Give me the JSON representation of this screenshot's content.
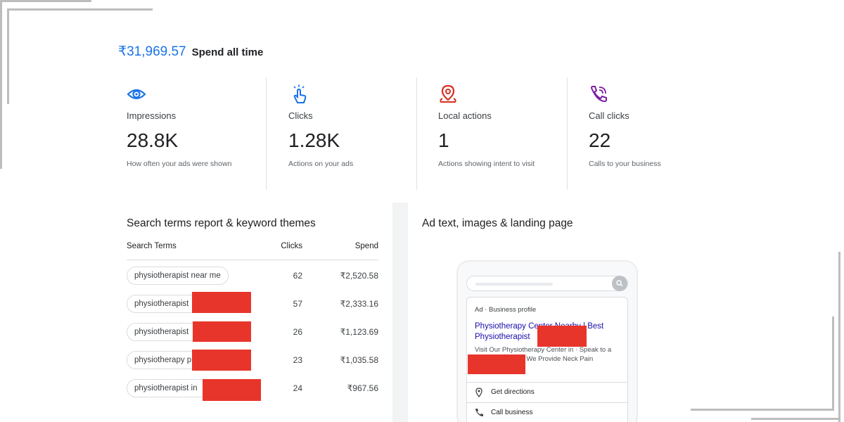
{
  "summary": {
    "spend_amount": "₹31,969.57",
    "spend_label": "Spend all time"
  },
  "metrics": [
    {
      "icon": "eye-icon",
      "label": "Impressions",
      "value": "28.8K",
      "description": "How often your ads were shown"
    },
    {
      "icon": "tap-icon",
      "label": "Clicks",
      "value": "1.28K",
      "description": "Actions on your ads"
    },
    {
      "icon": "location-pin-icon",
      "label": "Local actions",
      "value": "1",
      "description": "Actions showing intent to visit"
    },
    {
      "icon": "phone-call-icon",
      "label": "Call clicks",
      "value": "22",
      "description": "Calls to your business"
    }
  ],
  "search_terms": {
    "title": "Search terms report & keyword themes",
    "columns": [
      "Search Terms",
      "Clicks",
      "Spend"
    ],
    "rows": [
      {
        "term": "physiotherapist near me",
        "clicks": "62",
        "spend": "₹2,520.58"
      },
      {
        "term": "physiotherapist",
        "clicks": "57",
        "spend": "₹2,333.16"
      },
      {
        "term": "physiotherapist",
        "clicks": "26",
        "spend": "₹1,123.69"
      },
      {
        "term": "physiotherapy p",
        "clicks": "23",
        "spend": "₹1,035.58"
      },
      {
        "term": "physiotherapist in",
        "clicks": "24",
        "spend": "₹967.56"
      }
    ]
  },
  "ad_preview": {
    "title": "Ad text, images & landing page",
    "tag": "Ad · Business profile",
    "headline": "Physiotherapy Center Nearby | Best Physiotherapist",
    "description": "Visit Our Physiotherapy Center in · Speak to a Physiotherapist · We Provide Neck Pain Treatment,...",
    "actions": [
      "Get directions",
      "Call business"
    ]
  },
  "colors": {
    "accent": "#1a73e8",
    "redaction": "#e8352b",
    "eye_icon": "#1a73e8",
    "tap_icon": "#1a73e8",
    "pin_icon": "#d93025",
    "phone_icon": "#7b1fa2"
  }
}
